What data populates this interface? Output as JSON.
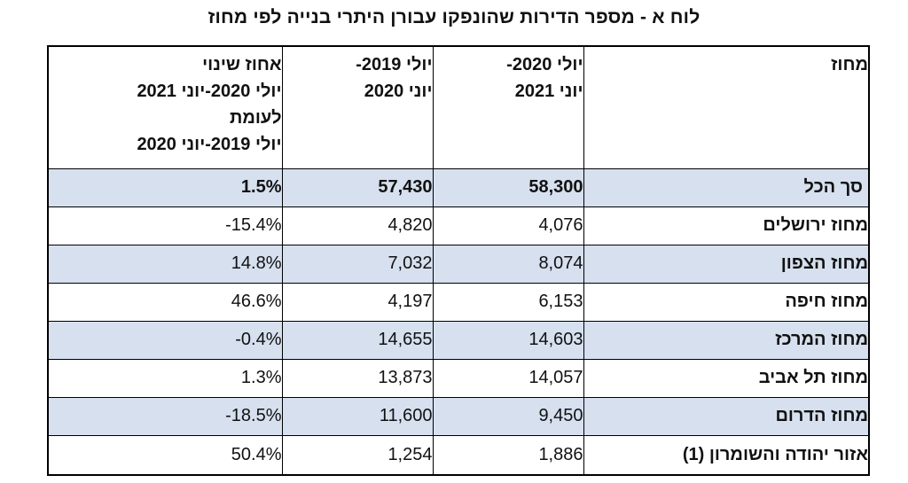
{
  "title": "לוח א - מספר הדירות שהונפקו עבורן היתרי בנייה לפי מחוז",
  "table": {
    "headers": {
      "district": "מחוז",
      "current_period": [
        "יולי 2020-",
        "יוני 2021"
      ],
      "previous_period": [
        "יולי 2019-",
        "יוני 2020"
      ],
      "change": [
        "אחוז שינוי",
        "יולי 2020-יוני 2021",
        "לעומת",
        "יולי 2019-יוני 2020"
      ]
    },
    "rows": [
      {
        "district": "סך הכל",
        "current": "58,300",
        "previous": "57,430",
        "change": "1.5%"
      },
      {
        "district": "מחוז ירושלים",
        "current": "4,076",
        "previous": "4,820",
        "change": "-15.4%"
      },
      {
        "district": "מחוז הצפון",
        "current": "8,074",
        "previous": "7,032",
        "change": "14.8%"
      },
      {
        "district": "מחוז חיפה",
        "current": "6,153",
        "previous": "4,197",
        "change": "46.6%"
      },
      {
        "district": "מחוז המרכז",
        "current": "14,603",
        "previous": "14,655",
        "change": "-0.4%"
      },
      {
        "district": "מחוז תל אביב",
        "current": "14,057",
        "previous": "13,873",
        "change": "1.3%"
      },
      {
        "district": "מחוז הדרום",
        "current": "9,450",
        "previous": "11,600",
        "change": "-18.5%"
      },
      {
        "district": "אזור יהודה והשומרון (1)",
        "current": "1,886",
        "previous": "1,254",
        "change": "50.4%"
      }
    ]
  },
  "colors": {
    "shaded_row": "#d6e0ef",
    "border": "#000000"
  }
}
